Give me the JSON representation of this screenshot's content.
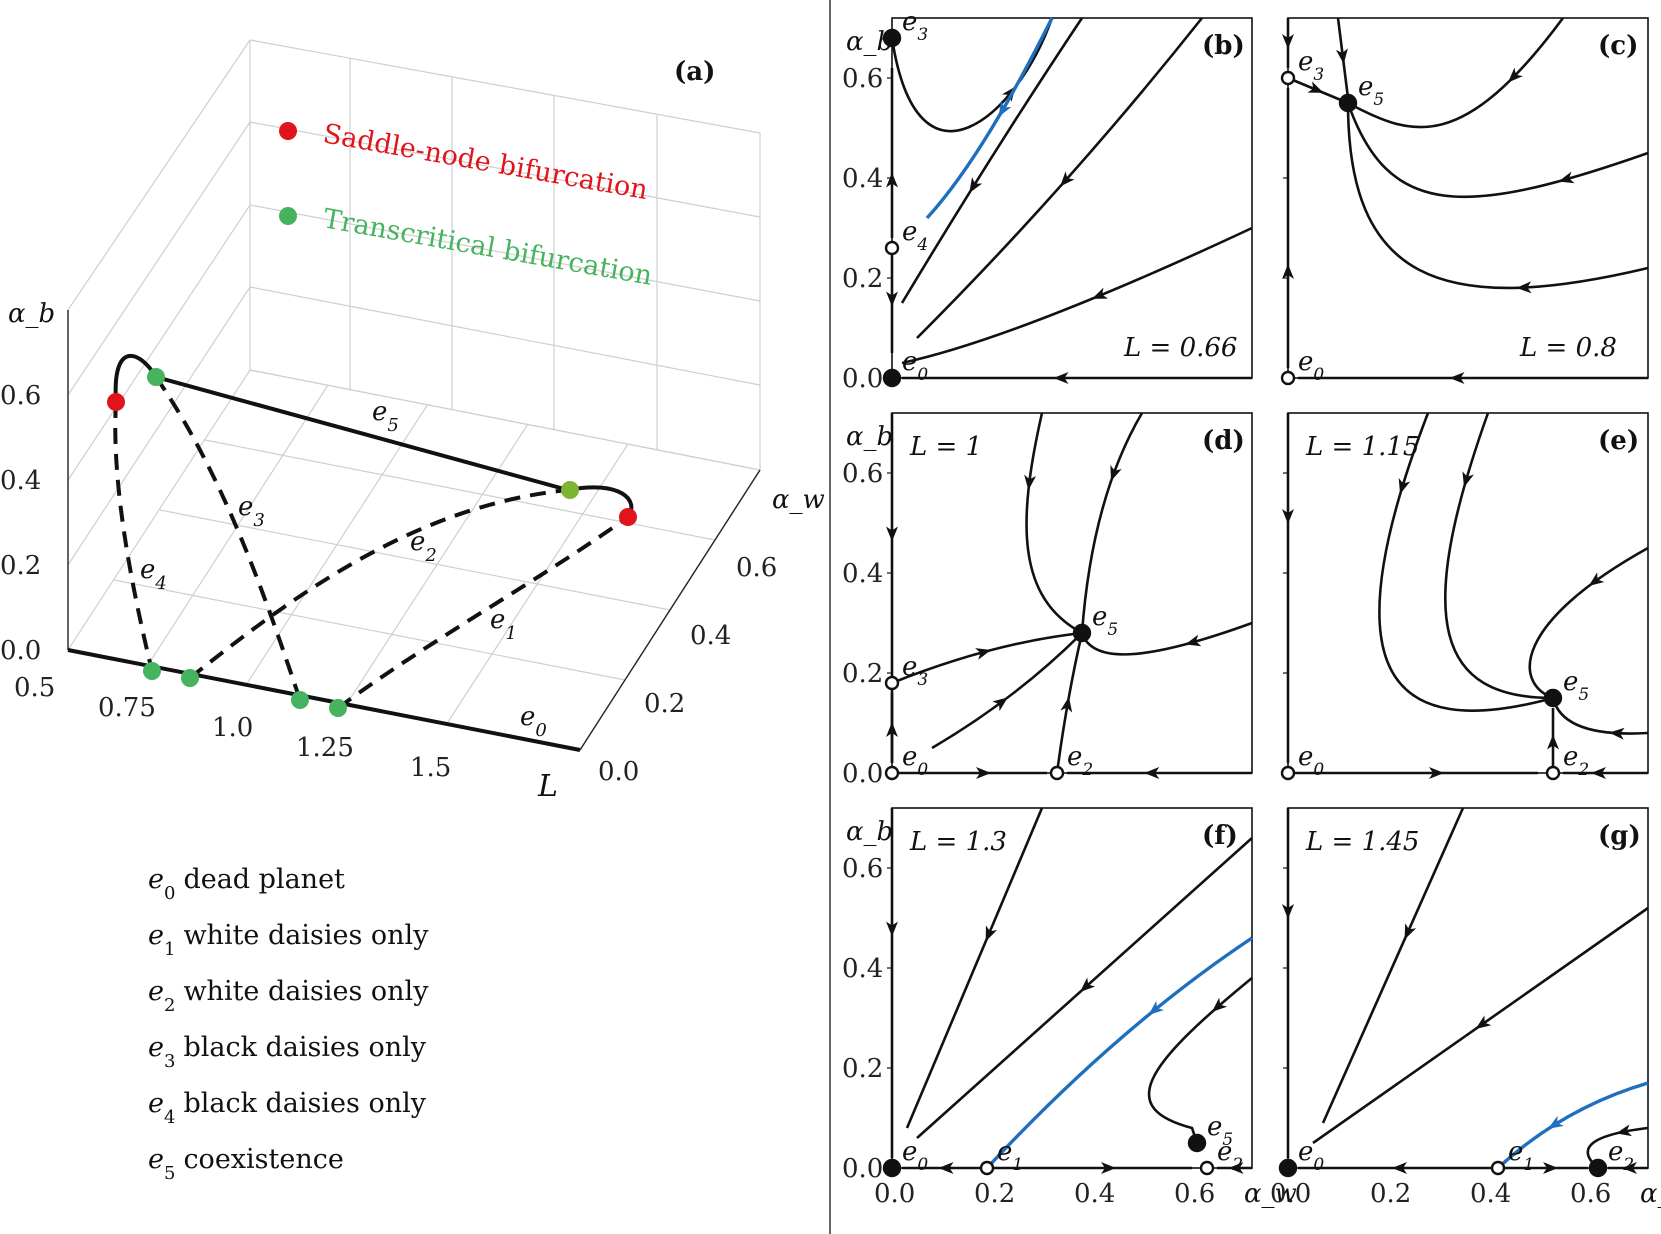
{
  "colors": {
    "saddle_node": "#e1141b",
    "transcritical": "#46b35e",
    "transcritical_alt": "#7cb531",
    "blue": "#1f6fbf",
    "ink": "#111111",
    "grid": "#cfcfcf"
  },
  "panel_a": {
    "tag": "(a)",
    "legend": [
      {
        "name": "Saddle-node bifurcation",
        "color_key": "saddle_node"
      },
      {
        "name": "Transcritical bifurcation",
        "color_key": "transcritical"
      }
    ],
    "z_label": "α_b",
    "x_label": "L",
    "y_label": "α_w",
    "x_ticks": [
      "0.5",
      "0.75",
      "1.0",
      "1.25",
      "1.5"
    ],
    "y_ticks": [
      "0.0",
      "0.2",
      "0.4",
      "0.6"
    ],
    "z_ticks": [
      "0.0",
      "0.2",
      "0.4",
      "0.6"
    ],
    "branch_labels": [
      "e5",
      "e3",
      "e2",
      "e4",
      "e1",
      "e0"
    ]
  },
  "equilibria_legend": [
    {
      "sym": "e",
      "sub": "0",
      "text": "dead planet"
    },
    {
      "sym": "e",
      "sub": "1",
      "text": "white daisies only"
    },
    {
      "sym": "e",
      "sub": "2",
      "text": "white daisies only"
    },
    {
      "sym": "e",
      "sub": "3",
      "text": "black daisies only"
    },
    {
      "sym": "e",
      "sub": "4",
      "text": "black daisies only"
    },
    {
      "sym": "e",
      "sub": "5",
      "text": "coexistence"
    }
  ],
  "phase_panels": [
    {
      "tag": "(b)",
      "L_text": "L = 0.66"
    },
    {
      "tag": "(c)",
      "L_text": "L = 0.8"
    },
    {
      "tag": "(d)",
      "L_text": "L = 1"
    },
    {
      "tag": "(e)",
      "L_text": "L = 1.15"
    },
    {
      "tag": "(f)",
      "L_text": "L = 1.3"
    },
    {
      "tag": "(g)",
      "L_text": "L = 1.45"
    }
  ],
  "phase_axes": {
    "y_label": "α_b",
    "x_label": "α_w",
    "y_ticks": [
      "0.0",
      "0.2",
      "0.4",
      "0.6"
    ],
    "x_ticks": [
      "0.0",
      "0.2",
      "0.4",
      "0.6"
    ]
  },
  "chart_data": {
    "type": "line",
    "description_items": [
      "bifurcation diagram",
      "phase portraits"
    ],
    "bifurcation": {
      "x_axis": "L",
      "y_axis": "α_w",
      "z_axis": "α_b",
      "xlim": [
        0.5,
        1.75
      ],
      "ylim": [
        0.0,
        0.7
      ],
      "zlim": [
        0.0,
        0.7
      ],
      "saddle_node_points": [
        {
          "L": 0.72,
          "alpha_w": 0.0,
          "alpha_b": 0.68
        },
        {
          "L": 1.58,
          "alpha_w": 0.68,
          "alpha_b": 0.0
        }
      ],
      "transcritical_points": [
        {
          "L": 0.81,
          "alpha_w": 0.0,
          "alpha_b": 0.0
        },
        {
          "L": 0.89,
          "alpha_w": 0.0,
          "alpha_b": 0.0
        },
        {
          "L": 1.16,
          "alpha_w": 0.0,
          "alpha_b": 0.0
        },
        {
          "L": 1.22,
          "alpha_w": 0.0,
          "alpha_b": 0.0
        },
        {
          "L": 0.8,
          "alpha_w": 0.0,
          "alpha_b": 0.6
        },
        {
          "L": 1.45,
          "alpha_w": 0.62,
          "alpha_b": 0.0
        }
      ],
      "branches": [
        "e0",
        "e1",
        "e2",
        "e3",
        "e4",
        "e5"
      ]
    },
    "phase_portraits": [
      {
        "panel": "b",
        "L": 0.66,
        "equilibria": [
          {
            "name": "e0",
            "alpha_w": 0.0,
            "alpha_b": 0.0,
            "stable": true
          },
          {
            "name": "e3",
            "alpha_w": 0.0,
            "alpha_b": 0.68,
            "stable": true
          },
          {
            "name": "e4",
            "alpha_w": 0.0,
            "alpha_b": 0.26,
            "stable": false
          }
        ]
      },
      {
        "panel": "c",
        "L": 0.8,
        "equilibria": [
          {
            "name": "e0",
            "alpha_w": 0.0,
            "alpha_b": 0.0,
            "stable": false
          },
          {
            "name": "e3",
            "alpha_w": 0.0,
            "alpha_b": 0.6,
            "stable": false
          },
          {
            "name": "e5",
            "alpha_w": 0.12,
            "alpha_b": 0.55,
            "stable": true
          }
        ]
      },
      {
        "panel": "d",
        "L": 1.0,
        "equilibria": [
          {
            "name": "e0",
            "alpha_w": 0.0,
            "alpha_b": 0.0,
            "stable": false
          },
          {
            "name": "e2",
            "alpha_w": 0.33,
            "alpha_b": 0.0,
            "stable": false
          },
          {
            "name": "e3",
            "alpha_w": 0.0,
            "alpha_b": 0.18,
            "stable": false
          },
          {
            "name": "e5",
            "alpha_w": 0.38,
            "alpha_b": 0.28,
            "stable": true
          }
        ]
      },
      {
        "panel": "e",
        "L": 1.15,
        "equilibria": [
          {
            "name": "e0",
            "alpha_w": 0.0,
            "alpha_b": 0.0,
            "stable": false
          },
          {
            "name": "e2",
            "alpha_w": 0.53,
            "alpha_b": 0.0,
            "stable": false
          },
          {
            "name": "e5",
            "alpha_w": 0.53,
            "alpha_b": 0.15,
            "stable": true
          }
        ]
      },
      {
        "panel": "f",
        "L": 1.3,
        "equilibria": [
          {
            "name": "e0",
            "alpha_w": 0.0,
            "alpha_b": 0.0,
            "stable": true
          },
          {
            "name": "e1",
            "alpha_w": 0.19,
            "alpha_b": 0.0,
            "stable": false
          },
          {
            "name": "e2",
            "alpha_w": 0.63,
            "alpha_b": 0.0,
            "stable": false
          },
          {
            "name": "e5",
            "alpha_w": 0.61,
            "alpha_b": 0.05,
            "stable": true
          }
        ]
      },
      {
        "panel": "g",
        "L": 1.45,
        "equilibria": [
          {
            "name": "e0",
            "alpha_w": 0.0,
            "alpha_b": 0.0,
            "stable": true
          },
          {
            "name": "e1",
            "alpha_w": 0.42,
            "alpha_b": 0.0,
            "stable": false
          },
          {
            "name": "e2",
            "alpha_w": 0.62,
            "alpha_b": 0.0,
            "stable": true
          }
        ]
      }
    ]
  }
}
